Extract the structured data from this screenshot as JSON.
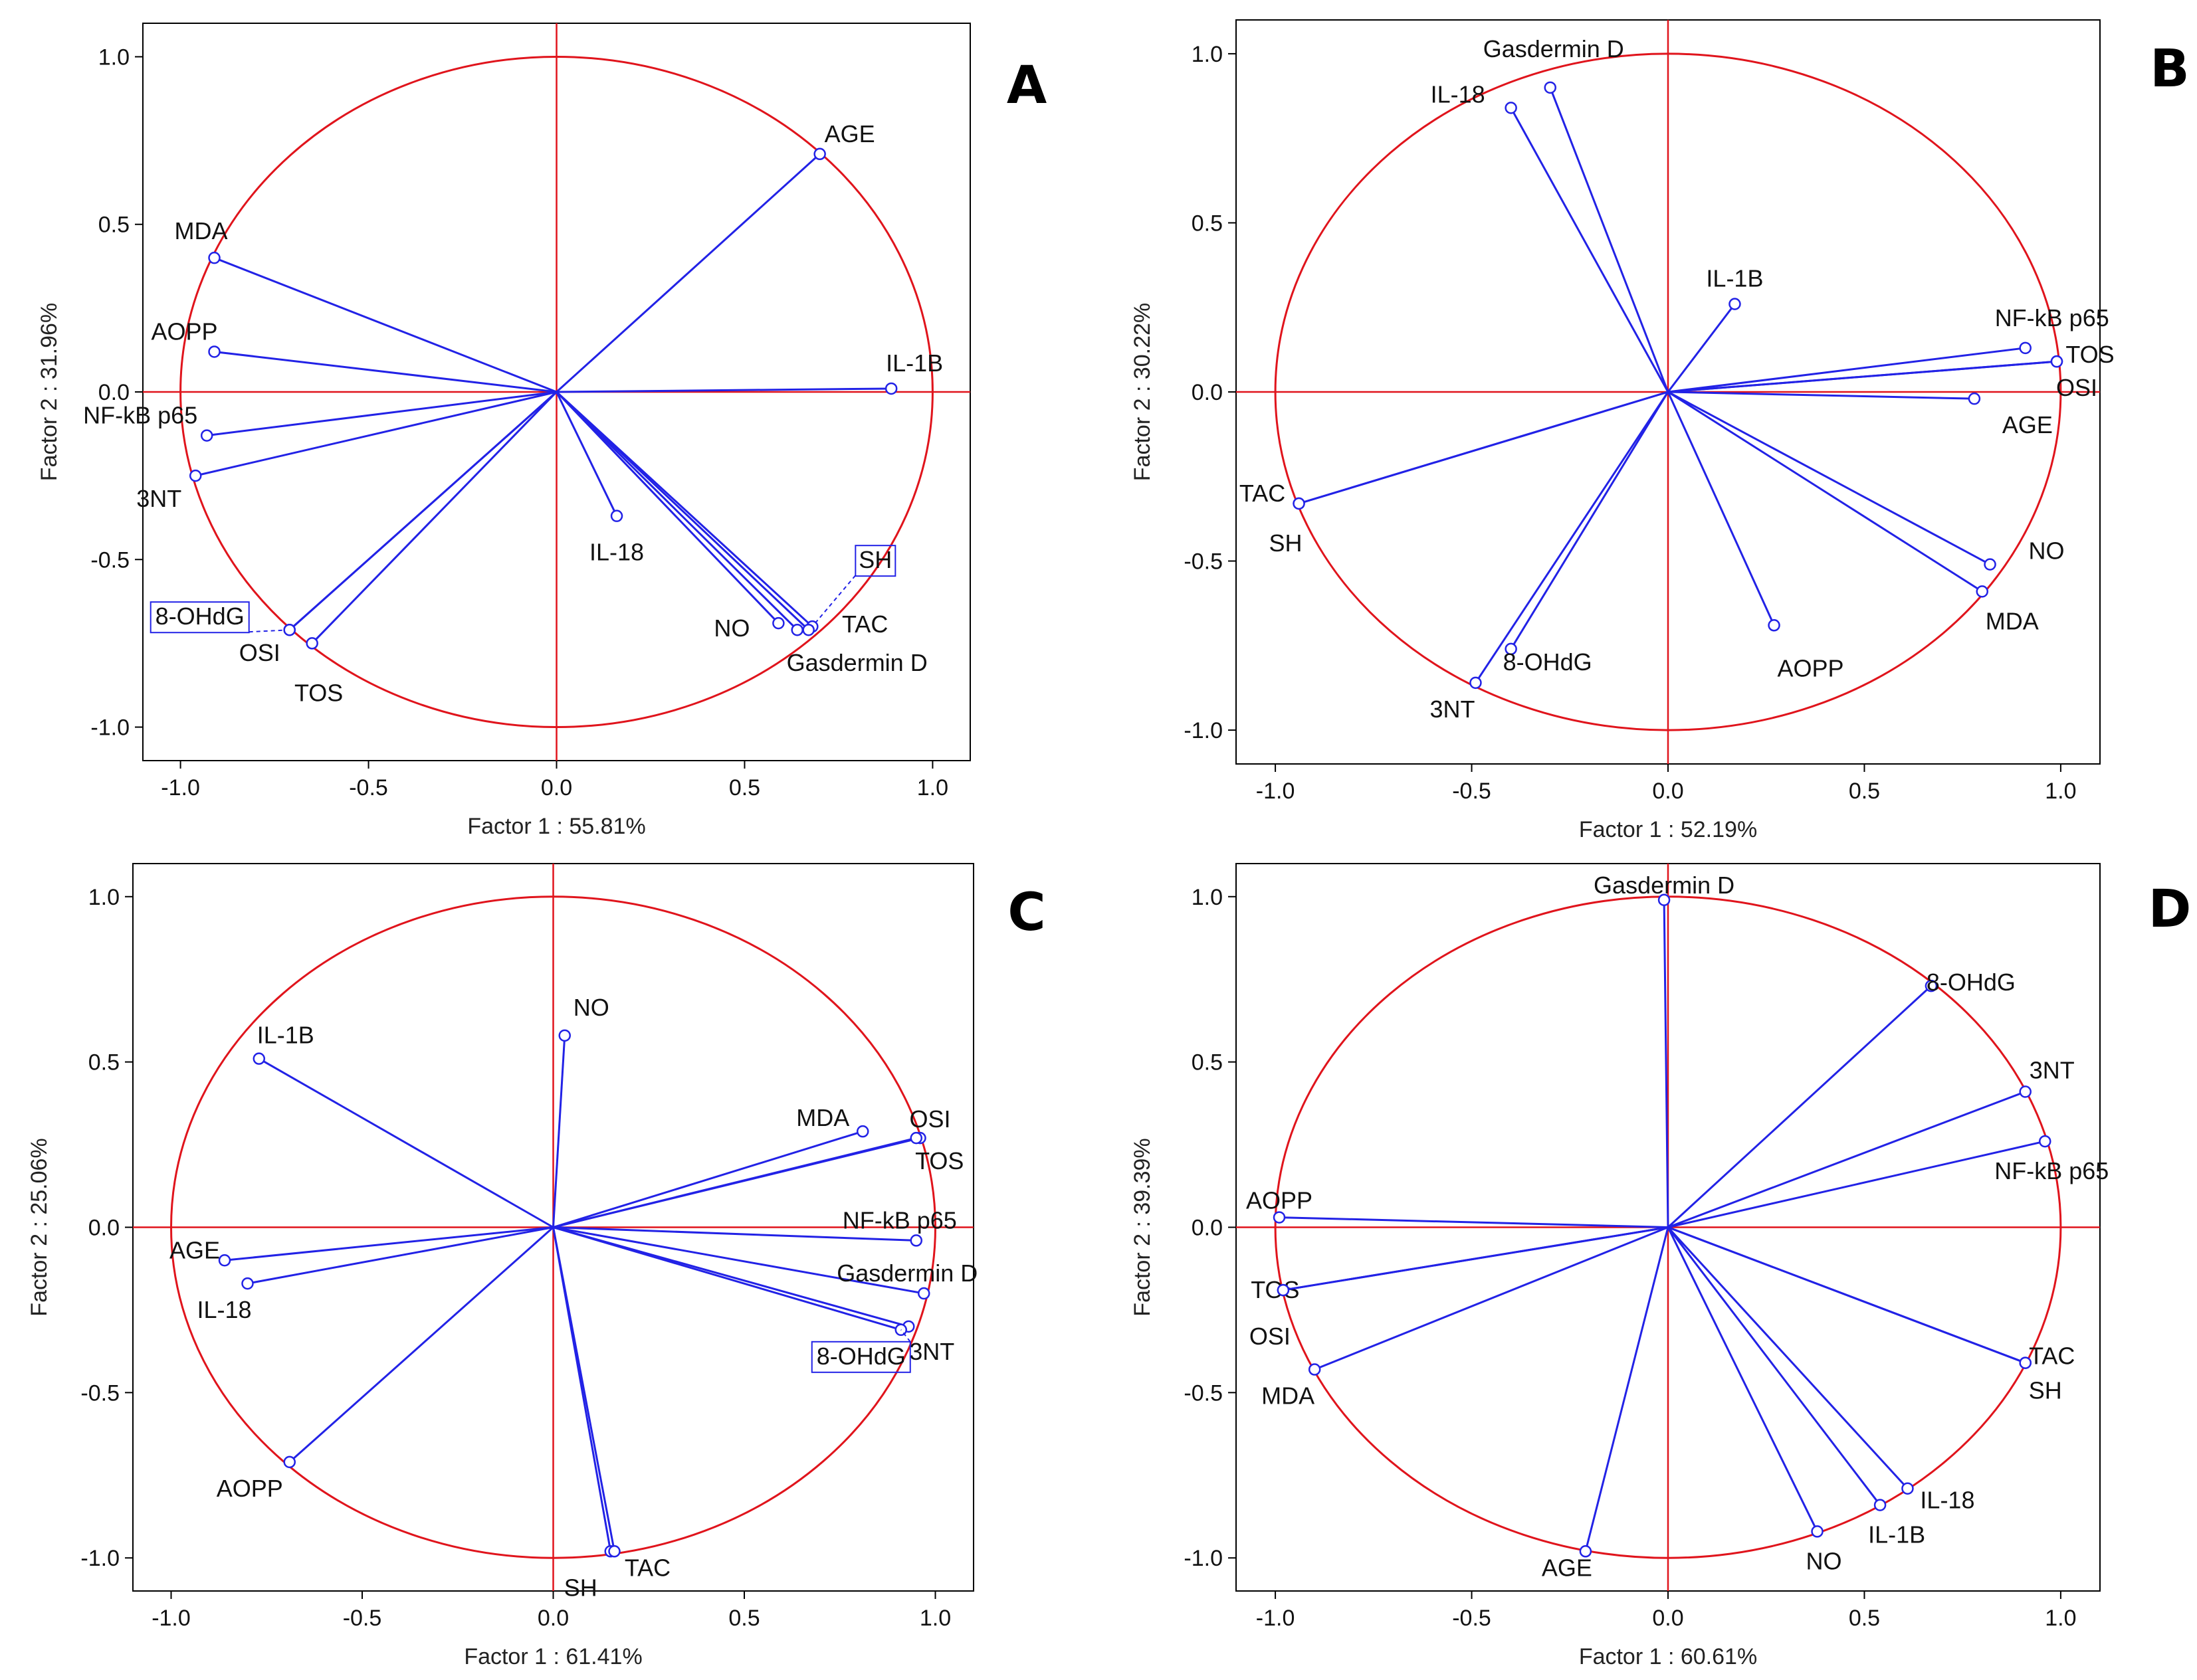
{
  "colors": {
    "circle": "#e0141c",
    "axes_cross": "#e0141c",
    "vectors": "#2222e6",
    "frame": "#000000",
    "label_box": "#2222e6"
  },
  "chart_data": [
    {
      "type": "scatter",
      "subtype": "pca-correlation-circle",
      "panel_label": "A",
      "xlabel": "Factor 1 : 55.81%",
      "ylabel": "Factor 2 : 31.96%",
      "xlim": [
        -1.1,
        1.1
      ],
      "ylim": [
        -1.1,
        1.1
      ],
      "x_ticks": [
        "-1.0",
        "-0.5",
        "0.0",
        "0.5",
        "1.0"
      ],
      "y_ticks": [
        "1.0",
        "0.5",
        "0.0",
        "-0.5",
        "-1.0"
      ],
      "points": [
        {
          "name": "AGE",
          "x": 0.7,
          "y": 0.71
        },
        {
          "name": "MDA",
          "x": -0.91,
          "y": 0.4
        },
        {
          "name": "AOPP",
          "x": -0.91,
          "y": 0.12
        },
        {
          "name": "IL-1B",
          "x": 0.89,
          "y": 0.01
        },
        {
          "name": "NF-kB p65",
          "x": -0.93,
          "y": -0.13
        },
        {
          "name": "3NT",
          "x": -0.96,
          "y": -0.25
        },
        {
          "name": "IL-18",
          "x": 0.16,
          "y": -0.37
        },
        {
          "name": "SH",
          "x": 0.68,
          "y": -0.7
        },
        {
          "name": "TAC",
          "x": 0.67,
          "y": -0.71
        },
        {
          "name": "NO",
          "x": 0.59,
          "y": -0.69
        },
        {
          "name": "Gasdermin D",
          "x": 0.64,
          "y": -0.71
        },
        {
          "name": "8-OHdG",
          "x": -0.71,
          "y": -0.71
        },
        {
          "name": "OSI",
          "x": -0.71,
          "y": -0.71
        },
        {
          "name": "TOS",
          "x": -0.65,
          "y": -0.75
        }
      ]
    },
    {
      "type": "scatter",
      "subtype": "pca-correlation-circle",
      "panel_label": "B",
      "xlabel": "Factor 1 : 52.19%",
      "ylabel": "Factor 2 : 30.22%",
      "xlim": [
        -1.1,
        1.1
      ],
      "ylim": [
        -1.1,
        1.1
      ],
      "x_ticks": [
        "-1.0",
        "-0.5",
        "0.0",
        "0.5",
        "1.0"
      ],
      "y_ticks": [
        "1.0",
        "0.5",
        "0.0",
        "-0.5",
        "-1.0"
      ],
      "points": [
        {
          "name": "Gasdermin D",
          "x": -0.3,
          "y": 0.9
        },
        {
          "name": "IL-18",
          "x": -0.4,
          "y": 0.84
        },
        {
          "name": "IL-1B",
          "x": 0.17,
          "y": 0.26
        },
        {
          "name": "NF-kB p65",
          "x": 0.91,
          "y": 0.13
        },
        {
          "name": "TOS",
          "x": 0.99,
          "y": 0.09
        },
        {
          "name": "OSI",
          "x": 0.99,
          "y": 0.09
        },
        {
          "name": "AGE",
          "x": 0.78,
          "y": -0.02
        },
        {
          "name": "TAC",
          "x": -0.94,
          "y": -0.33
        },
        {
          "name": "SH",
          "x": -0.94,
          "y": -0.33
        },
        {
          "name": "NO",
          "x": 0.82,
          "y": -0.51
        },
        {
          "name": "MDA",
          "x": 0.8,
          "y": -0.59
        },
        {
          "name": "AOPP",
          "x": 0.27,
          "y": -0.69
        },
        {
          "name": "8-OHdG",
          "x": -0.4,
          "y": -0.76
        },
        {
          "name": "3NT",
          "x": -0.49,
          "y": -0.86
        }
      ]
    },
    {
      "type": "scatter",
      "subtype": "pca-correlation-circle",
      "panel_label": "C",
      "xlabel": "Factor 1 : 61.41%",
      "ylabel": "Factor 2 : 25.06%",
      "xlim": [
        -1.1,
        1.1
      ],
      "ylim": [
        -1.1,
        1.1
      ],
      "x_ticks": [
        "-1.0",
        "-0.5",
        "0.0",
        "0.5",
        "1.0"
      ],
      "y_ticks": [
        "1.0",
        "0.5",
        "0.0",
        "-0.5",
        "-1.0"
      ],
      "points": [
        {
          "name": "NO",
          "x": 0.03,
          "y": 0.58
        },
        {
          "name": "IL-1B",
          "x": -0.77,
          "y": 0.51
        },
        {
          "name": "MDA",
          "x": 0.81,
          "y": 0.29
        },
        {
          "name": "OSI",
          "x": 0.96,
          "y": 0.27
        },
        {
          "name": "TOS",
          "x": 0.95,
          "y": 0.27
        },
        {
          "name": "NF-kB p65",
          "x": 0.95,
          "y": -0.04
        },
        {
          "name": "AGE",
          "x": -0.86,
          "y": -0.1
        },
        {
          "name": "IL-18",
          "x": -0.8,
          "y": -0.17
        },
        {
          "name": "Gasdermin D",
          "x": 0.97,
          "y": -0.2
        },
        {
          "name": "3NT",
          "x": 0.93,
          "y": -0.3
        },
        {
          "name": "8-OHdG",
          "x": 0.91,
          "y": -0.31
        },
        {
          "name": "AOPP",
          "x": -0.69,
          "y": -0.71
        },
        {
          "name": "SH",
          "x": 0.15,
          "y": -0.98
        },
        {
          "name": "TAC",
          "x": 0.16,
          "y": -0.98
        }
      ]
    },
    {
      "type": "scatter",
      "subtype": "pca-correlation-circle",
      "panel_label": "D",
      "xlabel": "Factor 1 : 60.61%",
      "ylabel": "Factor 2 : 39.39%",
      "xlim": [
        -1.1,
        1.1
      ],
      "ylim": [
        -1.1,
        1.1
      ],
      "x_ticks": [
        "-1.0",
        "-0.5",
        "0.0",
        "0.5",
        "1.0"
      ],
      "y_ticks": [
        "1.0",
        "0.5",
        "0.0",
        "-0.5",
        "-1.0"
      ],
      "points": [
        {
          "name": "Gasdermin D",
          "x": -0.01,
          "y": 0.99
        },
        {
          "name": "8-OHdG",
          "x": 0.67,
          "y": 0.73
        },
        {
          "name": "3NT",
          "x": 0.91,
          "y": 0.41
        },
        {
          "name": "NF-kB p65",
          "x": 0.96,
          "y": 0.26
        },
        {
          "name": "AOPP",
          "x": -0.99,
          "y": 0.03
        },
        {
          "name": "TOS",
          "x": -0.98,
          "y": -0.19
        },
        {
          "name": "OSI",
          "x": -0.98,
          "y": -0.19
        },
        {
          "name": "MDA",
          "x": -0.9,
          "y": -0.43
        },
        {
          "name": "TAC",
          "x": 0.91,
          "y": -0.41
        },
        {
          "name": "SH",
          "x": 0.91,
          "y": -0.41
        },
        {
          "name": "IL-18",
          "x": 0.61,
          "y": -0.79
        },
        {
          "name": "IL-1B",
          "x": 0.54,
          "y": -0.84
        },
        {
          "name": "NO",
          "x": 0.38,
          "y": -0.92
        },
        {
          "name": "AGE",
          "x": -0.21,
          "y": -0.98
        }
      ]
    }
  ]
}
